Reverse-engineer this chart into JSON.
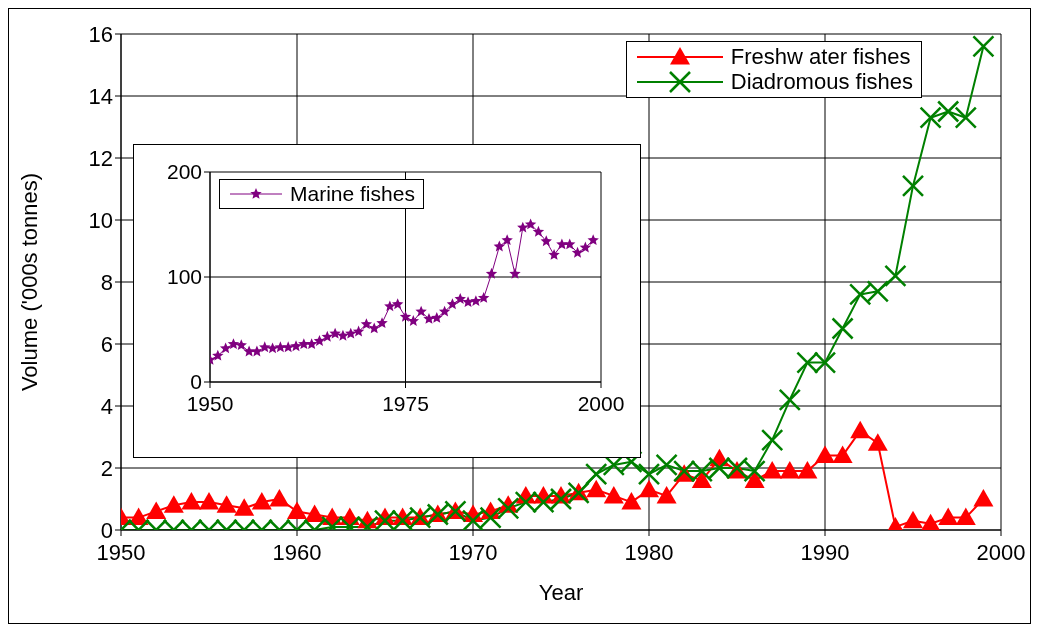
{
  "chart_data": [
    {
      "type": "line",
      "xlabel": "Year",
      "ylabel": "Volume ('000s tonnes)",
      "x": [
        1950,
        1951,
        1952,
        1953,
        1954,
        1955,
        1956,
        1957,
        1958,
        1959,
        1960,
        1961,
        1962,
        1963,
        1964,
        1965,
        1966,
        1967,
        1968,
        1969,
        1970,
        1971,
        1972,
        1973,
        1974,
        1975,
        1976,
        1977,
        1978,
        1979,
        1980,
        1981,
        1982,
        1983,
        1984,
        1985,
        1986,
        1987,
        1988,
        1989,
        1990,
        1991,
        1992,
        1993,
        1994,
        1995,
        1996,
        1997,
        1998,
        1999
      ],
      "xlim": [
        1950,
        2000
      ],
      "xticks": [
        1950,
        1960,
        1970,
        1980,
        1990,
        2000
      ],
      "ylim": [
        0,
        16
      ],
      "yticks": [
        0,
        2,
        4,
        6,
        8,
        10,
        12,
        14,
        16
      ],
      "grid": true,
      "legend": "top right",
      "line_style": "solid",
      "series": [
        {
          "name": "Freshw ater fishes",
          "color": "#ff0000",
          "marker": "triangle",
          "values": [
            0.4,
            0.4,
            0.6,
            0.8,
            0.9,
            0.9,
            0.8,
            0.7,
            0.9,
            1.0,
            0.6,
            0.5,
            0.4,
            0.4,
            0.3,
            0.4,
            0.4,
            0.4,
            0.5,
            0.6,
            0.5,
            0.6,
            0.8,
            1.1,
            1.1,
            1.1,
            1.2,
            1.3,
            1.1,
            0.9,
            1.3,
            1.1,
            1.8,
            1.6,
            2.3,
            1.9,
            1.6,
            1.9,
            1.9,
            1.9,
            2.4,
            2.4,
            3.2,
            2.8,
            0.1,
            0.3,
            0.2,
            0.4,
            0.4,
            1.0
          ]
        },
        {
          "name": "Diadromous fishes",
          "color": "#008000",
          "marker": "cross",
          "values": [
            0,
            0,
            0,
            0,
            0,
            0,
            0,
            0,
            0,
            0,
            0,
            0,
            0.1,
            0.1,
            0.1,
            0.3,
            0.3,
            0.4,
            0.5,
            0.6,
            0.3,
            0.4,
            0.7,
            0.9,
            0.9,
            1.0,
            1.2,
            1.8,
            2.1,
            2.2,
            1.8,
            2.1,
            1.9,
            1.9,
            2.0,
            2.0,
            1.9,
            2.9,
            4.2,
            5.4,
            5.4,
            6.5,
            7.6,
            7.7,
            8.2,
            11.1,
            13.3,
            13.5,
            13.3,
            15.6
          ]
        }
      ]
    },
    {
      "type": "line",
      "x": [
        1950,
        1951,
        1952,
        1953,
        1954,
        1955,
        1956,
        1957,
        1958,
        1959,
        1960,
        1961,
        1962,
        1963,
        1964,
        1965,
        1966,
        1967,
        1968,
        1969,
        1970,
        1971,
        1972,
        1973,
        1974,
        1975,
        1976,
        1977,
        1978,
        1979,
        1980,
        1981,
        1982,
        1983,
        1984,
        1985,
        1986,
        1987,
        1988,
        1989,
        1990,
        1991,
        1992,
        1993,
        1994,
        1995,
        1996,
        1997,
        1998,
        1999
      ],
      "xlim": [
        1950,
        2000
      ],
      "xticks": [
        1950,
        1975,
        2000
      ],
      "ylim": [
        0,
        200
      ],
      "yticks": [
        0,
        100,
        200
      ],
      "grid": true,
      "legend": "top left",
      "line_style": "solid",
      "series": [
        {
          "name": "Marine fishes",
          "color": "#800080",
          "marker": "star",
          "values": [
            21,
            25,
            32,
            36,
            35,
            29,
            29,
            33,
            32,
            33,
            33,
            34,
            36,
            36,
            39,
            43,
            46,
            44,
            46,
            48,
            55,
            51,
            56,
            72,
            74,
            62,
            58,
            67,
            60,
            61,
            67,
            74,
            79,
            76,
            77,
            80,
            103,
            129,
            135,
            103,
            147,
            150,
            143,
            134,
            121,
            131,
            131,
            123,
            128,
            135
          ]
        }
      ]
    }
  ]
}
